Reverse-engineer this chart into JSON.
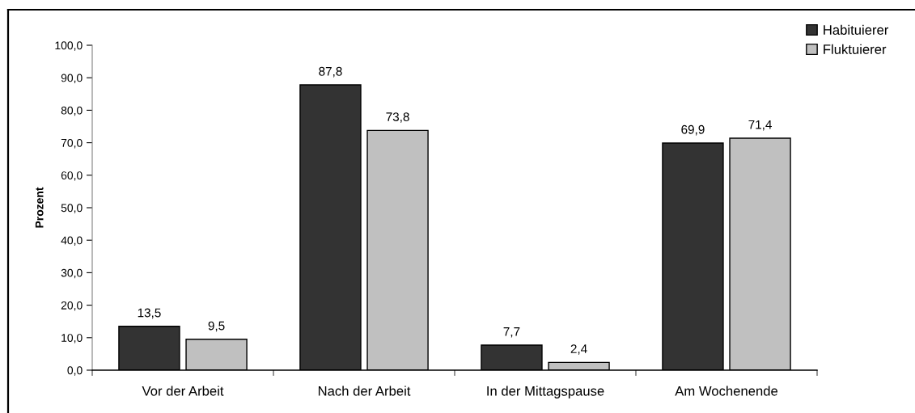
{
  "chart_data": {
    "type": "bar",
    "ylabel": "Prozent",
    "categories": [
      "Vor der Arbeit",
      "Nach der Arbeit",
      "In der Mittagspause",
      "Am Wochenende"
    ],
    "series": [
      {
        "name": "Habituierer",
        "color": "#333333",
        "values": [
          13.5,
          87.8,
          7.7,
          69.9
        ],
        "value_labels": [
          "13,5",
          "87,8",
          "7,7",
          "69,9"
        ]
      },
      {
        "name": "Fluktuierer",
        "color": "#c0c0c0",
        "values": [
          9.5,
          73.8,
          2.4,
          71.4
        ],
        "value_labels": [
          "9,5",
          "73,8",
          "2,4",
          "71,4"
        ]
      }
    ],
    "ylim": [
      0,
      100
    ],
    "yticks": [
      {
        "value": 0,
        "label": "0,0"
      },
      {
        "value": 10,
        "label": "10,0"
      },
      {
        "value": 20,
        "label": "20,0"
      },
      {
        "value": 30,
        "label": "30,0"
      },
      {
        "value": 40,
        "label": "40,0"
      },
      {
        "value": 50,
        "label": "50,0"
      },
      {
        "value": 60,
        "label": "60,0"
      },
      {
        "value": 70,
        "label": "70,0"
      },
      {
        "value": 80,
        "label": "80,0"
      },
      {
        "value": 90,
        "label": "90,0"
      },
      {
        "value": 100,
        "label": "100,0"
      }
    ],
    "legend": "top right"
  }
}
